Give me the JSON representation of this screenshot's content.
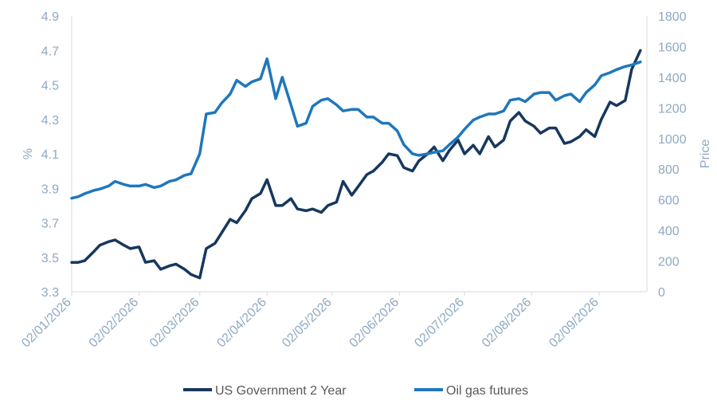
{
  "chart_data": {
    "type": "line",
    "xlabel": "",
    "ylabel_left": "%",
    "ylabel_right": "Price",
    "ylim_left": [
      3.3,
      4.9
    ],
    "ylim_right": [
      0,
      1800
    ],
    "yticks_left": [
      "3.3",
      "3.5",
      "3.7",
      "3.9",
      "4.1",
      "4.3",
      "4.5",
      "4.7",
      "4.9"
    ],
    "yticks_right": [
      "0",
      "200",
      "400",
      "600",
      "800",
      "1000",
      "1200",
      "1400",
      "1600",
      "1800"
    ],
    "xticks": [
      "02/01/2026",
      "02/02/2026",
      "02/03/2026",
      "02/04/2026",
      "02/05/2026",
      "02/06/2026",
      "02/07/2026",
      "02/08/2026",
      "02/09/2026"
    ],
    "grid": false,
    "legend_position": "bottom",
    "series": [
      {
        "name": "US Government 2 Year",
        "axis": "left",
        "color": "#17375e",
        "x": [
          "2026-01-02",
          "2026-01-05",
          "2026-01-08",
          "2026-01-12",
          "2026-01-15",
          "2026-01-19",
          "2026-01-22",
          "2026-01-26",
          "2026-01-29",
          "2026-02-02",
          "2026-02-05",
          "2026-02-09",
          "2026-02-12",
          "2026-02-16",
          "2026-02-19",
          "2026-02-23",
          "2026-02-26",
          "2026-03-02",
          "2026-03-05",
          "2026-03-09",
          "2026-03-12",
          "2026-03-16",
          "2026-03-19",
          "2026-03-23",
          "2026-03-26",
          "2026-03-30",
          "2026-04-02",
          "2026-04-06",
          "2026-04-09",
          "2026-04-13",
          "2026-04-16",
          "2026-04-20",
          "2026-04-23",
          "2026-04-27",
          "2026-04-30",
          "2026-05-04",
          "2026-05-07",
          "2026-05-11",
          "2026-05-14",
          "2026-05-18",
          "2026-05-21",
          "2026-05-25",
          "2026-05-28",
          "2026-06-01",
          "2026-06-04",
          "2026-06-08",
          "2026-06-11",
          "2026-06-15",
          "2026-06-18",
          "2026-06-22",
          "2026-06-25",
          "2026-06-29",
          "2026-07-02",
          "2026-07-06",
          "2026-07-09",
          "2026-07-13",
          "2026-07-16",
          "2026-07-20",
          "2026-07-23",
          "2026-07-27",
          "2026-07-30",
          "2026-08-03",
          "2026-08-06",
          "2026-08-10",
          "2026-08-13",
          "2026-08-17",
          "2026-08-20",
          "2026-08-24",
          "2026-08-27",
          "2026-08-31",
          "2026-09-03",
          "2026-09-07",
          "2026-09-10",
          "2026-09-14",
          "2026-09-17",
          "2026-09-21"
        ],
        "values": [
          3.47,
          3.47,
          3.48,
          3.53,
          3.57,
          3.59,
          3.6,
          3.57,
          3.55,
          3.56,
          3.47,
          3.48,
          3.43,
          3.45,
          3.46,
          3.43,
          3.4,
          3.38,
          3.55,
          3.58,
          3.64,
          3.72,
          3.7,
          3.77,
          3.84,
          3.87,
          3.95,
          3.8,
          3.8,
          3.84,
          3.78,
          3.77,
          3.78,
          3.76,
          3.8,
          3.82,
          3.94,
          3.86,
          3.91,
          3.98,
          4.0,
          4.05,
          4.1,
          4.09,
          4.02,
          4.0,
          4.06,
          4.1,
          4.14,
          4.06,
          4.12,
          4.18,
          4.1,
          4.15,
          4.1,
          4.2,
          4.14,
          4.18,
          4.29,
          4.34,
          4.29,
          4.26,
          4.22,
          4.25,
          4.25,
          4.16,
          4.17,
          4.2,
          4.24,
          4.2,
          4.3,
          4.4,
          4.38,
          4.41,
          4.59,
          4.7
        ]
      },
      {
        "name": "Oil gas futures",
        "axis": "right",
        "color": "#1f77bc",
        "x": [
          "2026-01-02",
          "2026-01-05",
          "2026-01-08",
          "2026-01-12",
          "2026-01-15",
          "2026-01-19",
          "2026-01-22",
          "2026-01-26",
          "2026-01-29",
          "2026-02-02",
          "2026-02-05",
          "2026-02-09",
          "2026-02-12",
          "2026-02-16",
          "2026-02-19",
          "2026-02-23",
          "2026-02-26",
          "2026-03-02",
          "2026-03-05",
          "2026-03-09",
          "2026-03-12",
          "2026-03-16",
          "2026-03-19",
          "2026-03-23",
          "2026-03-26",
          "2026-03-30",
          "2026-04-02",
          "2026-04-06",
          "2026-04-09",
          "2026-04-13",
          "2026-04-16",
          "2026-04-20",
          "2026-04-23",
          "2026-04-27",
          "2026-04-30",
          "2026-05-04",
          "2026-05-07",
          "2026-05-11",
          "2026-05-14",
          "2026-05-18",
          "2026-05-21",
          "2026-05-25",
          "2026-05-28",
          "2026-06-01",
          "2026-06-04",
          "2026-06-08",
          "2026-06-11",
          "2026-06-15",
          "2026-06-18",
          "2026-06-22",
          "2026-06-25",
          "2026-06-29",
          "2026-07-02",
          "2026-07-06",
          "2026-07-09",
          "2026-07-13",
          "2026-07-16",
          "2026-07-20",
          "2026-07-23",
          "2026-07-27",
          "2026-07-30",
          "2026-08-03",
          "2026-08-06",
          "2026-08-10",
          "2026-08-13",
          "2026-08-17",
          "2026-08-20",
          "2026-08-24",
          "2026-08-27",
          "2026-08-31",
          "2026-09-03",
          "2026-09-07",
          "2026-09-10",
          "2026-09-14",
          "2026-09-17",
          "2026-09-21"
        ],
        "values": [
          610,
          620,
          640,
          660,
          670,
          690,
          720,
          700,
          690,
          690,
          700,
          680,
          690,
          720,
          730,
          760,
          770,
          900,
          1160,
          1170,
          1230,
          1290,
          1380,
          1340,
          1370,
          1390,
          1520,
          1260,
          1400,
          1220,
          1080,
          1100,
          1210,
          1250,
          1260,
          1220,
          1180,
          1190,
          1190,
          1140,
          1140,
          1100,
          1100,
          1050,
          960,
          900,
          890,
          900,
          910,
          920,
          960,
          1010,
          1060,
          1120,
          1140,
          1160,
          1160,
          1180,
          1250,
          1260,
          1240,
          1290,
          1300,
          1300,
          1250,
          1280,
          1290,
          1240,
          1300,
          1350,
          1410,
          1430,
          1450,
          1470,
          1480,
          1500
        ]
      }
    ]
  }
}
